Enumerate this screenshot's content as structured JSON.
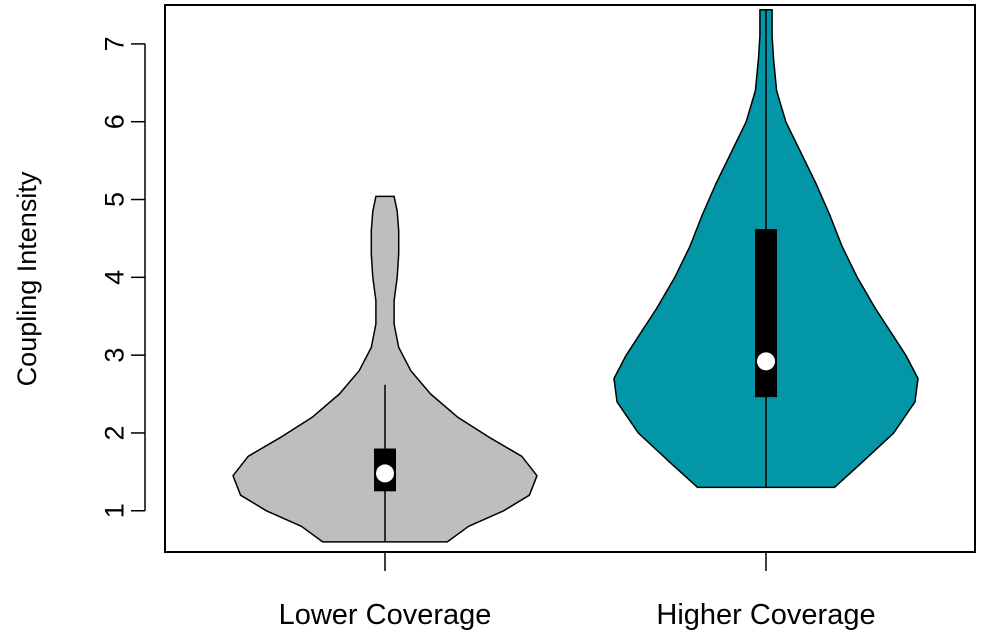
{
  "chart_data": {
    "type": "violin",
    "title": "",
    "xlabel": "",
    "ylabel": "Coupling Intensity",
    "ylim": [
      0.47,
      7.5
    ],
    "yticks": [
      1,
      2,
      3,
      4,
      5,
      6,
      7
    ],
    "grid": false,
    "categories": [
      "Lower Coverage",
      "Higher Coverage"
    ],
    "series": [
      {
        "category": "Lower Coverage",
        "color": "#bebebe",
        "min": 0.6,
        "q1": 1.25,
        "median": 1.48,
        "q3": 1.8,
        "whisker_high": 2.62,
        "max": 5.04,
        "density": [
          [
            0.6,
            0.41
          ],
          [
            0.8,
            0.55
          ],
          [
            1.0,
            0.78
          ],
          [
            1.2,
            0.95
          ],
          [
            1.45,
            1.0
          ],
          [
            1.7,
            0.9
          ],
          [
            1.95,
            0.68
          ],
          [
            2.2,
            0.48
          ],
          [
            2.5,
            0.3
          ],
          [
            2.8,
            0.17
          ],
          [
            3.1,
            0.09
          ],
          [
            3.4,
            0.06
          ],
          [
            3.7,
            0.06
          ],
          [
            4.0,
            0.08
          ],
          [
            4.3,
            0.09
          ],
          [
            4.6,
            0.09
          ],
          [
            4.85,
            0.08
          ],
          [
            5.04,
            0.06
          ]
        ]
      },
      {
        "category": "Higher Coverage",
        "color": "#0396a6",
        "min": 1.3,
        "q1": 2.46,
        "median": 2.92,
        "q3": 4.62,
        "whisker_high": 7.44,
        "max": 7.44,
        "density": [
          [
            1.3,
            0.45
          ],
          [
            1.6,
            0.62
          ],
          [
            2.0,
            0.84
          ],
          [
            2.4,
            0.98
          ],
          [
            2.7,
            1.0
          ],
          [
            3.0,
            0.92
          ],
          [
            3.3,
            0.82
          ],
          [
            3.6,
            0.72
          ],
          [
            4.0,
            0.6
          ],
          [
            4.4,
            0.5
          ],
          [
            4.8,
            0.42
          ],
          [
            5.2,
            0.33
          ],
          [
            5.6,
            0.23
          ],
          [
            6.0,
            0.13
          ],
          [
            6.4,
            0.07
          ],
          [
            6.8,
            0.05
          ],
          [
            7.1,
            0.04
          ],
          [
            7.44,
            0.04
          ]
        ]
      }
    ]
  }
}
